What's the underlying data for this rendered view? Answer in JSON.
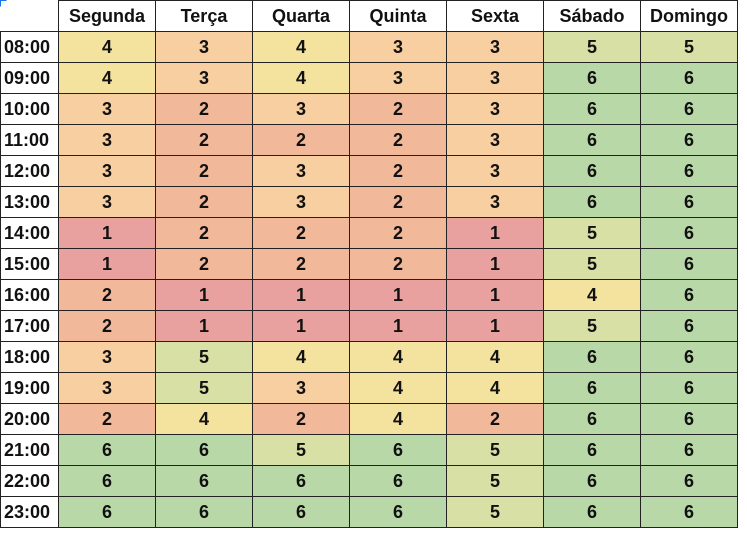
{
  "table": {
    "headers": [
      "Segunda",
      "Terça",
      "Quarta",
      "Quinta",
      "Sexta",
      "Sábado",
      "Domingo"
    ],
    "rows": [
      {
        "time": "08:00",
        "values": [
          "4",
          "3",
          "4",
          "3",
          "3",
          "5",
          "5"
        ]
      },
      {
        "time": "09:00",
        "values": [
          "4",
          "3",
          "4",
          "3",
          "3",
          "6",
          "6"
        ]
      },
      {
        "time": "10:00",
        "values": [
          "3",
          "2",
          "3",
          "2",
          "3",
          "6",
          "6"
        ]
      },
      {
        "time": "11:00",
        "values": [
          "3",
          "2",
          "2",
          "2",
          "3",
          "6",
          "6"
        ]
      },
      {
        "time": "12:00",
        "values": [
          "3",
          "2",
          "3",
          "2",
          "3",
          "6",
          "6"
        ]
      },
      {
        "time": "13:00",
        "values": [
          "3",
          "2",
          "3",
          "2",
          "3",
          "6",
          "6"
        ]
      },
      {
        "time": "14:00",
        "values": [
          "1",
          "2",
          "2",
          "2",
          "1",
          "5",
          "6"
        ]
      },
      {
        "time": "15:00",
        "values": [
          "1",
          "2",
          "2",
          "2",
          "1",
          "5",
          "6"
        ]
      },
      {
        "time": "16:00",
        "values": [
          "2",
          "1",
          "1",
          "1",
          "1",
          "4",
          "6"
        ]
      },
      {
        "time": "17:00",
        "values": [
          "2",
          "1",
          "1",
          "1",
          "1",
          "5",
          "6"
        ]
      },
      {
        "time": "18:00",
        "values": [
          "3",
          "5",
          "4",
          "4",
          "4",
          "6",
          "6"
        ]
      },
      {
        "time": "19:00",
        "values": [
          "3",
          "5",
          "3",
          "4",
          "4",
          "6",
          "6"
        ]
      },
      {
        "time": "20:00",
        "values": [
          "2",
          "4",
          "2",
          "4",
          "2",
          "6",
          "6"
        ]
      },
      {
        "time": "21:00",
        "values": [
          "6",
          "6",
          "5",
          "6",
          "5",
          "6",
          "6"
        ]
      },
      {
        "time": "22:00",
        "values": [
          "6",
          "6",
          "6",
          "6",
          "5",
          "6",
          "6"
        ]
      },
      {
        "time": "23:00",
        "values": [
          "6",
          "6",
          "6",
          "6",
          "5",
          "6",
          "6"
        ]
      }
    ]
  },
  "colors": {
    "1": "#e8a19f",
    "2": "#f1b89a",
    "3": "#f8cfa0",
    "4": "#f3e39f",
    "5": "#d8e0a6",
    "6": "#b9d8a8",
    "selection_marker": "#1a73e8"
  }
}
